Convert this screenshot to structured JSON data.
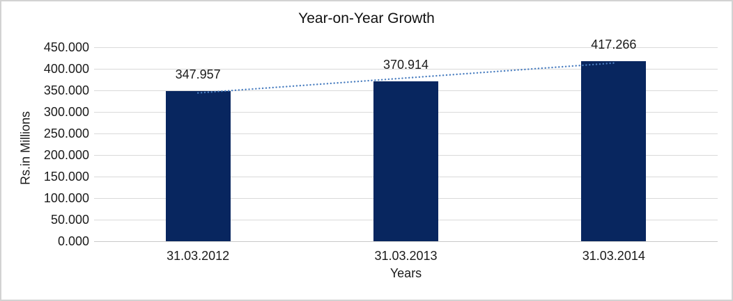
{
  "chart_data": {
    "type": "bar",
    "title": "Year-on-Year Growth",
    "xlabel": "Years",
    "ylabel": "Rs.in Millions",
    "categories": [
      "31.03.2012",
      "31.03.2013",
      "31.03.2014"
    ],
    "values": [
      347.957,
      370.914,
      417.266
    ],
    "data_labels": [
      "347.957",
      "370.914",
      "417.266"
    ],
    "ylim": [
      0,
      450
    ],
    "ytick_step": 50,
    "ytick_labels": [
      "0.000",
      "50.000",
      "100.000",
      "150.000",
      "200.000",
      "250.000",
      "300.000",
      "350.000",
      "400.000",
      "450.000"
    ],
    "grid": true,
    "legend": false,
    "trendline": {
      "type": "linear",
      "style": "dotted"
    },
    "colors": {
      "bar": "#08265f",
      "trendline": "#4a7ec0",
      "gridline": "#d9d9d9",
      "axis_line": "#c9c9c9",
      "text": "#1a1a1a",
      "frame_border": "#d2d2d2"
    }
  }
}
